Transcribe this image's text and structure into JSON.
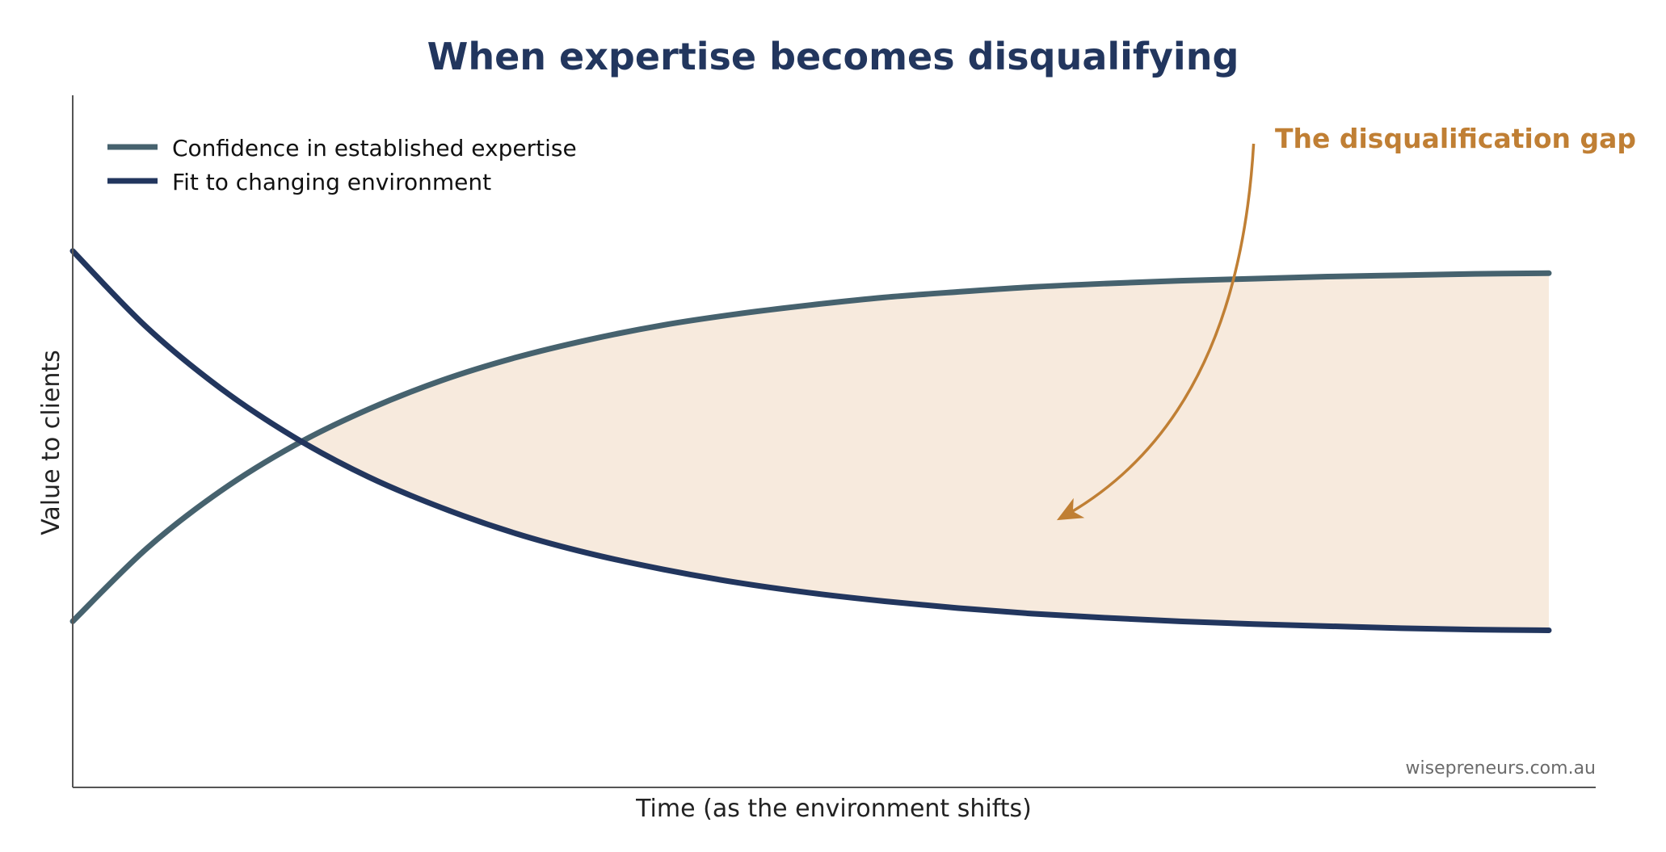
{
  "chart_data": {
    "type": "line",
    "title": "When expertise becomes disqualifying",
    "xlabel": "Time (as the environment shifts)",
    "ylabel": "Value to clients",
    "xlim": [
      0,
      10
    ],
    "ylim": [
      0,
      10
    ],
    "xticks": [],
    "yticks": [],
    "grid": false,
    "legend_position": "top-left",
    "series": [
      {
        "name": "Confidence in established expertise",
        "color": "#46626e",
        "x": [
          0,
          0.5,
          1,
          1.5,
          2,
          2.5,
          3,
          3.5,
          4,
          4.5,
          5,
          5.5,
          6,
          6.5,
          7,
          7.5,
          8,
          8.5,
          9,
          9.5,
          10
        ],
        "y": [
          2.4,
          3.45,
          4.28,
          4.94,
          5.46,
          5.88,
          6.21,
          6.47,
          6.68,
          6.84,
          6.97,
          7.08,
          7.16,
          7.23,
          7.28,
          7.32,
          7.35,
          7.38,
          7.4,
          7.42,
          7.43
        ]
      },
      {
        "name": "Fit to changing environment",
        "color": "#22365e",
        "x": [
          0,
          0.5,
          1,
          1.5,
          2,
          2.5,
          3,
          3.5,
          4,
          4.5,
          5,
          5.5,
          6,
          6.5,
          7,
          7.5,
          8,
          8.5,
          9,
          9.5,
          10
        ],
        "y": [
          7.75,
          6.65,
          5.77,
          5.06,
          4.49,
          4.04,
          3.67,
          3.38,
          3.15,
          2.96,
          2.81,
          2.69,
          2.59,
          2.51,
          2.45,
          2.4,
          2.36,
          2.33,
          2.3,
          2.28,
          2.27
        ]
      }
    ],
    "shaded_region": {
      "between_series": [
        0,
        1
      ],
      "x_from": 1.5,
      "x_to": 10,
      "color": "#f7eadd"
    },
    "annotations": [
      {
        "text": "The disqualification gap",
        "color": "#c07f34",
        "arrow_from": [
          8,
          9.3
        ],
        "arrow_to": [
          6.7,
          3.9
        ]
      }
    ],
    "watermark": "wisepreneurs.com.au",
    "colors": {
      "title": "#22365e",
      "axis": "#555555",
      "annotation": "#c07f34"
    }
  }
}
